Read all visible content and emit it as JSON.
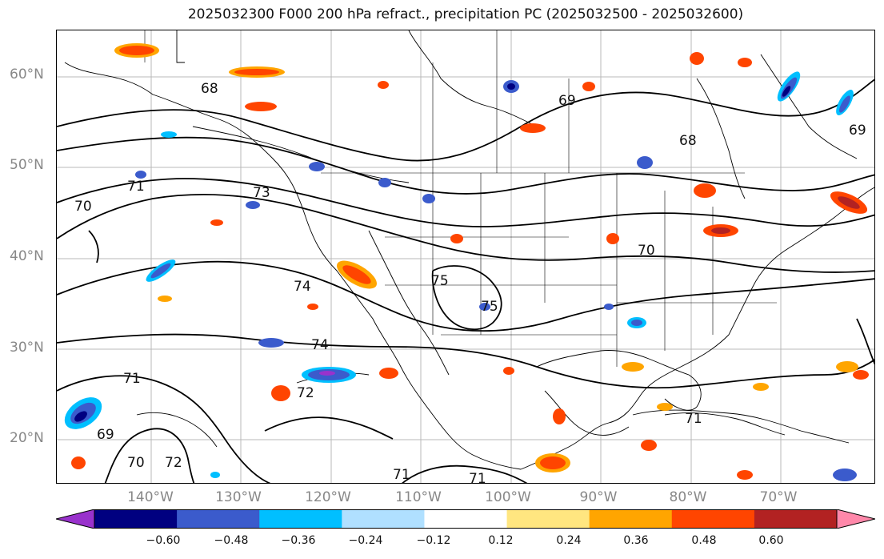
{
  "title": "2025032300 F000 200 hPa refract., precipitation PC (2025032500 - 2025032600)",
  "latitude_labels": [
    "60°N",
    "50°N",
    "40°N",
    "30°N",
    "20°N"
  ],
  "longitude_labels": [
    "140°W",
    "130°W",
    "120°W",
    "110°W",
    "100°W",
    "90°W",
    "80°W",
    "70°W"
  ],
  "contour_labels": [
    "68",
    "69",
    "68",
    "69",
    "71",
    "73",
    "70",
    "74",
    "75",
    "74",
    "70",
    "71",
    "72",
    "69",
    "70",
    "72",
    "71",
    "71",
    "71",
    "75"
  ],
  "colorbar": {
    "ticks": [
      "−0.60",
      "−0.48",
      "−0.36",
      "−0.24",
      "−0.12",
      "0.12",
      "0.24",
      "0.36",
      "0.48",
      "0.60"
    ],
    "colors": [
      "#9932cc",
      "#000080",
      "#3b5bcc",
      "#00bfff",
      "#b0e0ff",
      "#ffffff",
      "#ffe680",
      "#ffa500",
      "#ff4500",
      "#b22222",
      "#ff88aa"
    ]
  }
}
